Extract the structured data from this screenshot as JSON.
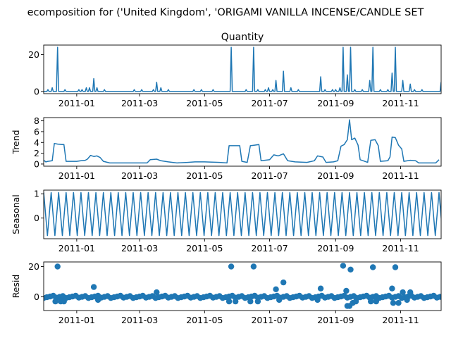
{
  "figure_title": "ecomposition for ('United Kingdom', 'ORIGAMI VANILLA INCENSE/CANDLE SET",
  "line_color": "#1f77b4",
  "chart_data": [
    {
      "type": "line",
      "title": "Quantity",
      "ylabel": "",
      "x_start": "2010-12-01",
      "x_end": "2011-12-09",
      "xlim": [
        "2010-12-01",
        "2011-12-09"
      ],
      "ylim": [
        -1.2,
        25.2
      ],
      "yticks": [
        0,
        20
      ],
      "xticks": [
        "2011-01-01",
        "2011-03-01",
        "2011-05-01",
        "2011-07-01",
        "2011-09-01",
        "2011-11-01"
      ],
      "xtick_labels": [
        "2011-01",
        "2011-03",
        "2011-05",
        "2011-07",
        "2011-09",
        "2011-11"
      ],
      "grid": false,
      "baseline": 0,
      "points": [
        [
          "2010-12-05",
          1
        ],
        [
          "2010-12-09",
          2
        ],
        [
          "2010-12-14",
          24
        ],
        [
          "2010-12-21",
          1
        ],
        [
          "2011-01-03",
          1
        ],
        [
          "2011-01-06",
          1
        ],
        [
          "2011-01-10",
          2
        ],
        [
          "2011-01-13",
          2
        ],
        [
          "2011-01-17",
          7
        ],
        [
          "2011-01-20",
          2
        ],
        [
          "2011-01-27",
          1
        ],
        [
          "2011-02-24",
          1
        ],
        [
          "2011-03-03",
          1
        ],
        [
          "2011-03-14",
          1
        ],
        [
          "2011-03-17",
          5
        ],
        [
          "2011-03-21",
          2
        ],
        [
          "2011-03-28",
          1
        ],
        [
          "2011-04-21",
          1
        ],
        [
          "2011-04-28",
          1
        ],
        [
          "2011-05-09",
          1
        ],
        [
          "2011-05-26",
          24
        ],
        [
          "2011-06-09",
          1
        ],
        [
          "2011-06-16",
          24
        ],
        [
          "2011-06-20",
          1
        ],
        [
          "2011-06-27",
          1
        ],
        [
          "2011-06-30",
          2
        ],
        [
          "2011-07-04",
          1
        ],
        [
          "2011-07-07",
          6
        ],
        [
          "2011-07-14",
          11
        ],
        [
          "2011-07-21",
          2
        ],
        [
          "2011-07-28",
          1
        ],
        [
          "2011-08-18",
          8
        ],
        [
          "2011-08-22",
          1
        ],
        [
          "2011-08-29",
          1
        ],
        [
          "2011-09-01",
          1
        ],
        [
          "2011-09-05",
          2
        ],
        [
          "2011-09-08",
          24
        ],
        [
          "2011-09-12",
          9
        ],
        [
          "2011-09-15",
          24
        ],
        [
          "2011-09-19",
          1
        ],
        [
          "2011-09-26",
          1
        ],
        [
          "2011-10-03",
          6
        ],
        [
          "2011-10-06",
          24
        ],
        [
          "2011-10-13",
          1
        ],
        [
          "2011-10-20",
          1
        ],
        [
          "2011-10-24",
          10
        ],
        [
          "2011-10-27",
          24
        ],
        [
          "2011-11-03",
          6
        ],
        [
          "2011-11-10",
          4
        ],
        [
          "2011-11-14",
          1
        ],
        [
          "2011-11-21",
          1
        ],
        [
          "2011-12-09",
          5
        ]
      ]
    },
    {
      "type": "line",
      "title": "",
      "ylabel": "Trend",
      "xlim": [
        "2010-12-01",
        "2011-12-09"
      ],
      "ylim": [
        -0.4,
        8.6
      ],
      "yticks": [
        0,
        2,
        4,
        6,
        8
      ],
      "xticks": [
        "2011-01-01",
        "2011-03-01",
        "2011-05-01",
        "2011-07-01",
        "2011-09-01",
        "2011-11-01"
      ],
      "xtick_labels": [
        "2011-01",
        "2011-03",
        "2011-05",
        "2011-07",
        "2011-09",
        "2011-11"
      ],
      "grid": false,
      "points": [
        [
          "2010-12-01",
          0.7
        ],
        [
          "2010-12-03",
          0.4
        ],
        [
          "2010-12-05",
          0.5
        ],
        [
          "2010-12-09",
          0.6
        ],
        [
          "2010-12-11",
          3.8
        ],
        [
          "2010-12-14",
          3.7
        ],
        [
          "2010-12-18",
          3.6
        ],
        [
          "2010-12-20",
          3.6
        ],
        [
          "2010-12-22",
          0.5
        ],
        [
          "2011-01-01",
          0.5
        ],
        [
          "2011-01-05",
          0.6
        ],
        [
          "2011-01-09",
          0.7
        ],
        [
          "2011-01-11",
          0.9
        ],
        [
          "2011-01-14",
          1.6
        ],
        [
          "2011-01-17",
          1.4
        ],
        [
          "2011-01-20",
          1.5
        ],
        [
          "2011-01-23",
          1.2
        ],
        [
          "2011-01-26",
          0.5
        ],
        [
          "2011-02-01",
          0.2
        ],
        [
          "2011-02-15",
          0.2
        ],
        [
          "2011-03-08",
          0.2
        ],
        [
          "2011-03-11",
          0.8
        ],
        [
          "2011-03-17",
          0.9
        ],
        [
          "2011-03-21",
          0.6
        ],
        [
          "2011-03-28",
          0.4
        ],
        [
          "2011-04-05",
          0.2
        ],
        [
          "2011-04-15",
          0.3
        ],
        [
          "2011-04-22",
          0.4
        ],
        [
          "2011-05-01",
          0.4
        ],
        [
          "2011-05-15",
          0.3
        ],
        [
          "2011-05-22",
          0.2
        ],
        [
          "2011-05-24",
          3.4
        ],
        [
          "2011-05-30",
          3.4
        ],
        [
          "2011-06-03",
          3.4
        ],
        [
          "2011-06-05",
          0.5
        ],
        [
          "2011-06-10",
          0.3
        ],
        [
          "2011-06-13",
          3.4
        ],
        [
          "2011-06-17",
          3.5
        ],
        [
          "2011-06-21",
          3.6
        ],
        [
          "2011-06-23",
          0.6
        ],
        [
          "2011-07-01",
          0.8
        ],
        [
          "2011-07-05",
          1.7
        ],
        [
          "2011-07-09",
          1.5
        ],
        [
          "2011-07-14",
          1.9
        ],
        [
          "2011-07-18",
          0.6
        ],
        [
          "2011-07-25",
          0.4
        ],
        [
          "2011-08-05",
          0.3
        ],
        [
          "2011-08-12",
          0.6
        ],
        [
          "2011-08-15",
          1.5
        ],
        [
          "2011-08-20",
          1.3
        ],
        [
          "2011-08-23",
          0.3
        ],
        [
          "2011-08-30",
          0.4
        ],
        [
          "2011-09-03",
          0.6
        ],
        [
          "2011-09-06",
          3.3
        ],
        [
          "2011-09-09",
          3.6
        ],
        [
          "2011-09-12",
          4.5
        ],
        [
          "2011-09-14",
          8.2
        ],
        [
          "2011-09-16",
          4.5
        ],
        [
          "2011-09-19",
          4.8
        ],
        [
          "2011-09-22",
          3.5
        ],
        [
          "2011-09-24",
          0.8
        ],
        [
          "2011-10-01",
          0.3
        ],
        [
          "2011-10-04",
          4.4
        ],
        [
          "2011-10-08",
          4.5
        ],
        [
          "2011-10-11",
          3.4
        ],
        [
          "2011-10-13",
          0.5
        ],
        [
          "2011-10-20",
          0.6
        ],
        [
          "2011-10-22",
          1.3
        ],
        [
          "2011-10-24",
          5.0
        ],
        [
          "2011-10-27",
          4.9
        ],
        [
          "2011-10-30",
          3.5
        ],
        [
          "2011-11-02",
          2.8
        ],
        [
          "2011-11-04",
          0.5
        ],
        [
          "2011-11-10",
          0.7
        ],
        [
          "2011-11-15",
          0.6
        ],
        [
          "2011-11-18",
          0.2
        ],
        [
          "2011-11-28",
          0.2
        ],
        [
          "2011-12-04",
          0.2
        ],
        [
          "2011-12-07",
          0.8
        ]
      ]
    },
    {
      "type": "line",
      "title": "",
      "ylabel": "Seasonal",
      "xlim": [
        "2010-12-01",
        "2011-12-09"
      ],
      "ylim": [
        -0.85,
        1.15
      ],
      "yticks": [
        0,
        1
      ],
      "xticks": [
        "2011-01-01",
        "2011-03-01",
        "2011-05-01",
        "2011-07-01",
        "2011-09-01",
        "2011-11-01"
      ],
      "xtick_labels": [
        "2011-01",
        "2011-03",
        "2011-05",
        "2011-07",
        "2011-09",
        "2011-11"
      ],
      "grid": false,
      "period_days": 7,
      "first_peak": "2010-12-01",
      "peak_value": 1.05,
      "trough_value": -0.72
    },
    {
      "type": "scatter",
      "title": "",
      "ylabel": "Resid",
      "xlim": [
        "2010-12-01",
        "2011-12-09"
      ],
      "ylim": [
        -9,
        23
      ],
      "yticks": [
        0,
        20
      ],
      "xticks": [
        "2011-01-01",
        "2011-03-01",
        "2011-05-01",
        "2011-07-01",
        "2011-09-01",
        "2011-11-01"
      ],
      "xtick_labels": [
        "2011-01",
        "2011-03",
        "2011-05",
        "2011-07",
        "2011-09",
        "2011-11"
      ],
      "grid": false,
      "zero_line": true,
      "baseline_points_every_days": 3,
      "outliers": [
        [
          "2010-12-14",
          20
        ],
        [
          "2010-12-12",
          -3
        ],
        [
          "2010-12-17",
          -3
        ],
        [
          "2010-12-20",
          -3
        ],
        [
          "2011-01-17",
          6.5
        ],
        [
          "2011-01-21",
          -2
        ],
        [
          "2011-03-17",
          3
        ],
        [
          "2011-05-26",
          20
        ],
        [
          "2011-05-24",
          -3
        ],
        [
          "2011-05-30",
          -3
        ],
        [
          "2011-06-16",
          20
        ],
        [
          "2011-06-13",
          -3
        ],
        [
          "2011-06-20",
          -3
        ],
        [
          "2011-07-07",
          5
        ],
        [
          "2011-07-14",
          9.5
        ],
        [
          "2011-07-10",
          -2
        ],
        [
          "2011-08-18",
          5.5
        ],
        [
          "2011-08-15",
          -2
        ],
        [
          "2011-09-08",
          20.5
        ],
        [
          "2011-09-11",
          4
        ],
        [
          "2011-09-15",
          18
        ],
        [
          "2011-09-12",
          -6
        ],
        [
          "2011-09-14",
          -6
        ],
        [
          "2011-09-17",
          -4
        ],
        [
          "2011-09-20",
          -3
        ],
        [
          "2011-10-06",
          19.5
        ],
        [
          "2011-10-04",
          -3
        ],
        [
          "2011-10-09",
          -3
        ],
        [
          "2011-10-24",
          5.5
        ],
        [
          "2011-10-27",
          19.5
        ],
        [
          "2011-10-25",
          -4
        ],
        [
          "2011-10-30",
          -4
        ],
        [
          "2011-11-03",
          3
        ],
        [
          "2011-11-10",
          3
        ],
        [
          "2011-11-07",
          -2
        ]
      ]
    }
  ]
}
